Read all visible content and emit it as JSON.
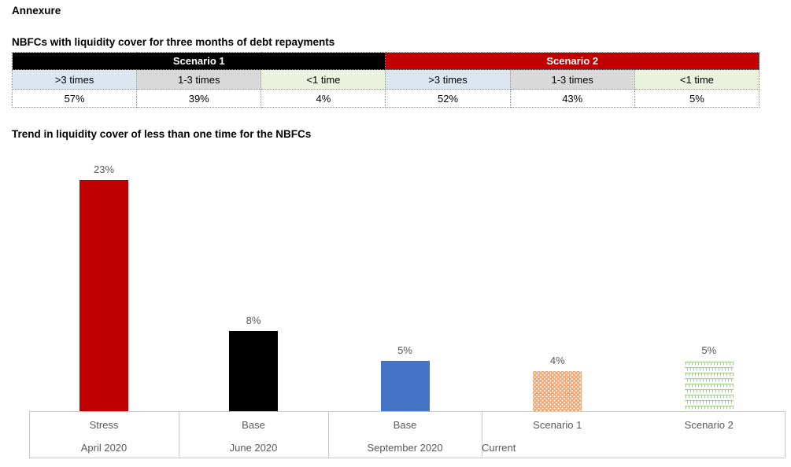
{
  "page": {
    "title": "Annexure"
  },
  "table": {
    "title": "NBFCs with liquidity cover for three months of debt repayments",
    "groups": [
      {
        "label": "Scenario 1",
        "color": "#000000"
      },
      {
        "label": "Scenario 2",
        "color": "#C00000"
      }
    ],
    "columns": [
      {
        "label": ">3 times",
        "bg": "#DCE6F1"
      },
      {
        "label": "1-3 times",
        "bg": "#D9D9D9"
      },
      {
        "label": "<1 time",
        "bg": "#EAF1DD"
      },
      {
        "label": ">3 times",
        "bg": "#DCE6F1"
      },
      {
        "label": "1-3 times",
        "bg": "#D9D9D9"
      },
      {
        "label": "<1 time",
        "bg": "#EAF1DD"
      }
    ],
    "values": [
      "57%",
      "39%",
      "4%",
      "52%",
      "43%",
      "5%"
    ]
  },
  "chart": {
    "title": "Trend in liquidity cover of less than one time for the NBFCs"
  },
  "chart_data": {
    "type": "bar",
    "categories": [
      "Stress",
      "Base",
      "Base",
      "Scenario 1",
      "Scenario 2"
    ],
    "period_labels": [
      "April 2020",
      "June 2020",
      "September 2020",
      "Current"
    ],
    "period_spans": [
      1,
      1,
      1,
      2
    ],
    "values": [
      23,
      8,
      5,
      4,
      5
    ],
    "data_labels": [
      "23%",
      "8%",
      "5%",
      "4%",
      "5%"
    ],
    "bar_styles": [
      {
        "pattern": "solid",
        "color": "#C00000"
      },
      {
        "pattern": "solid",
        "color": "#000000"
      },
      {
        "pattern": "solid",
        "color": "#4472C4"
      },
      {
        "pattern": "dots",
        "color": "#F0A878",
        "dot_color": "#FFFFFF"
      },
      {
        "pattern": "weave",
        "color": "#A8D08D",
        "bg": "#FFFFFF"
      }
    ],
    "ylim": [
      0,
      25
    ],
    "grid": false,
    "legend": "none",
    "label_color": "#595959",
    "axis_line_color": "#C9C9C9"
  }
}
